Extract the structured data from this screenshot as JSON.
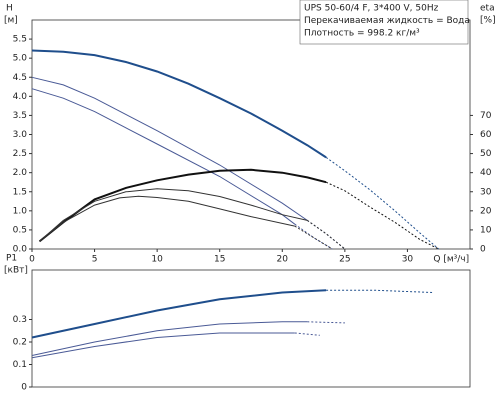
{
  "chart_data": [
    {
      "type": "line",
      "ylabel": "H",
      "yunit": "[м]",
      "y2label": "eta",
      "y2unit": "[%]",
      "xlabel": "Q [м³/ч]",
      "info": [
        "UPS 50-60/4 F, 3*400 V, 50Hz",
        "Перекачиваемая жидкость = Вода",
        "Плотность = 998.2 кг/м³"
      ],
      "xlim": [
        0,
        35
      ],
      "xticks": [
        0,
        5,
        10,
        15,
        20,
        25,
        30
      ],
      "ylim": [
        0,
        6
      ],
      "yticks": [
        {
          "value": 0,
          "label": "0.0"
        },
        0.5,
        {
          "value": 1,
          "label": "1.0"
        },
        1.5,
        {
          "value": 2,
          "label": "2.0"
        },
        2.5,
        {
          "value": 3,
          "label": "3.0"
        },
        3.5,
        {
          "value": 4,
          "label": "4.0"
        },
        4.5,
        {
          "value": 5,
          "label": "5.0"
        },
        5.5
      ],
      "y2lim": [
        0,
        120
      ],
      "y2ticks": [
        0,
        10,
        20,
        30,
        40,
        50,
        60,
        70
      ],
      "series": [
        {
          "color": "#1f4e8c",
          "width": 2,
          "dashed": false,
          "x": [
            0,
            2.5,
            5,
            7.5,
            10,
            12.5,
            15,
            17.5,
            20,
            22,
            23.5
          ],
          "values": [
            5.2,
            5.17,
            5.08,
            4.9,
            4.65,
            4.33,
            3.95,
            3.55,
            3.1,
            2.72,
            2.4
          ]
        },
        {
          "color": "#1f4e8c",
          "width": 1,
          "dashed": true,
          "x": [
            23.5,
            25,
            27,
            29,
            31,
            32.5
          ],
          "values": [
            2.4,
            2.05,
            1.55,
            1.0,
            0.42,
            0
          ]
        },
        {
          "color": "#4a5a96",
          "width": 1,
          "dashed": false,
          "x": [
            0,
            2.5,
            5,
            10,
            15,
            20,
            22
          ],
          "values": [
            4.5,
            4.3,
            3.95,
            3.1,
            2.2,
            1.2,
            0.75
          ]
        },
        {
          "color": "#4a5a96",
          "width": 1,
          "dashed": true,
          "x": [
            22,
            23.5,
            25
          ],
          "values": [
            0.75,
            0.4,
            0
          ]
        },
        {
          "color": "#4a5a96",
          "width": 1,
          "dashed": false,
          "x": [
            0,
            2.5,
            5,
            10,
            15,
            20,
            21
          ],
          "values": [
            4.2,
            3.95,
            3.6,
            2.75,
            1.9,
            0.9,
            0.65
          ]
        },
        {
          "color": "#4a5a96",
          "width": 1,
          "dashed": true,
          "x": [
            21,
            22.5,
            24
          ],
          "values": [
            0.65,
            0.3,
            0
          ]
        },
        {
          "color": "#111111",
          "width": 2,
          "axis": "y2",
          "dashed": false,
          "x": [
            0.6,
            2.5,
            5,
            7.5,
            10,
            12.5,
            15,
            17.5,
            20,
            22,
            23.5
          ],
          "values": [
            4,
            14,
            26,
            32,
            36,
            39,
            41,
            41.5,
            40,
            37.5,
            35
          ]
        },
        {
          "color": "#111111",
          "width": 1,
          "axis": "y2",
          "dashed": true,
          "x": [
            23.5,
            25,
            27,
            29,
            31,
            32.5
          ],
          "values": [
            35,
            30.5,
            22,
            14,
            5,
            0
          ]
        },
        {
          "color": "#333333",
          "width": 1,
          "axis": "y2",
          "dashed": false,
          "x": [
            0.6,
            2.5,
            5,
            7.5,
            10,
            12.5,
            15,
            17.5,
            20,
            22
          ],
          "values": [
            4,
            15,
            25,
            30,
            31.6,
            30.5,
            27.5,
            23,
            18,
            15
          ]
        },
        {
          "color": "#333333",
          "width": 1,
          "axis": "y2",
          "dashed": true,
          "x": [
            22,
            23.5,
            25
          ],
          "values": [
            15,
            8,
            0
          ]
        },
        {
          "color": "#333333",
          "width": 1,
          "axis": "y2",
          "dashed": false,
          "x": [
            0.6,
            2.5,
            5,
            7,
            8.5,
            10,
            12.5,
            15,
            17.5,
            21
          ],
          "values": [
            4,
            14,
            23,
            26.8,
            27.6,
            27,
            25,
            21,
            17,
            12
          ]
        },
        {
          "color": "#333333",
          "width": 1,
          "axis": "y2",
          "dashed": true,
          "x": [
            21,
            22.5,
            24
          ],
          "values": [
            12,
            6,
            0
          ]
        }
      ]
    },
    {
      "type": "line",
      "ylabel": "P1",
      "yunit": "[кВт]",
      "xlim": [
        0,
        35
      ],
      "ylim": [
        0,
        0.52
      ],
      "yticks": [
        0,
        0.1,
        0.2,
        0.3
      ],
      "series": [
        {
          "color": "#1f4e8c",
          "width": 2,
          "dashed": false,
          "x": [
            0,
            5,
            10,
            15,
            20,
            23.5
          ],
          "values": [
            0.22,
            0.28,
            0.34,
            0.39,
            0.42,
            0.43
          ]
        },
        {
          "color": "#1f4e8c",
          "width": 1,
          "dashed": true,
          "x": [
            23.5,
            27.5,
            32
          ],
          "values": [
            0.43,
            0.43,
            0.42
          ]
        },
        {
          "color": "#4a5a96",
          "width": 1,
          "dashed": false,
          "x": [
            0,
            5,
            10,
            15,
            20,
            22
          ],
          "values": [
            0.14,
            0.2,
            0.25,
            0.28,
            0.29,
            0.29
          ]
        },
        {
          "color": "#4a5a96",
          "width": 1,
          "dashed": true,
          "x": [
            22,
            25
          ],
          "values": [
            0.29,
            0.285
          ]
        },
        {
          "color": "#4a5a96",
          "width": 1,
          "dashed": false,
          "x": [
            0,
            5,
            10,
            15,
            21
          ],
          "values": [
            0.13,
            0.18,
            0.22,
            0.24,
            0.24
          ]
        },
        {
          "color": "#4a5a96",
          "width": 1,
          "dashed": true,
          "x": [
            21,
            23
          ],
          "values": [
            0.24,
            0.23
          ]
        }
      ]
    }
  ]
}
